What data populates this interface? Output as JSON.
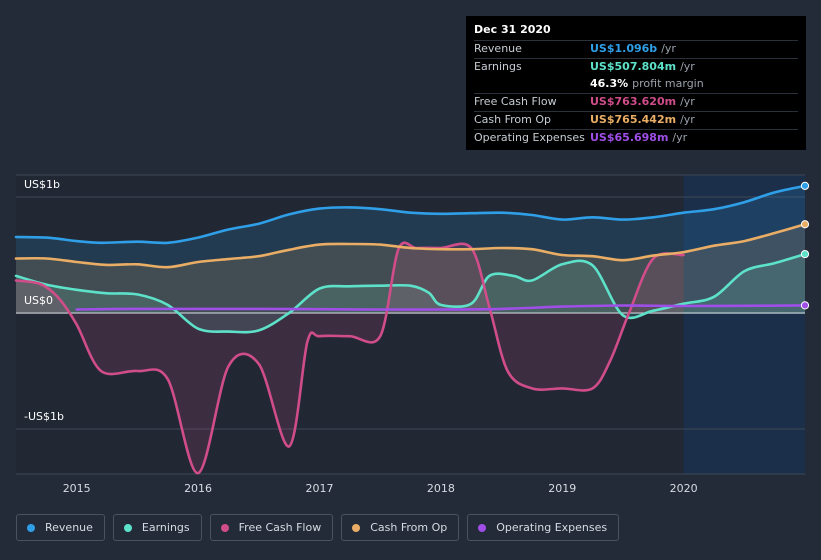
{
  "chart_data": {
    "type": "line",
    "x_range": [
      2014.5,
      2021.0
    ],
    "y_range": [
      -1.38,
      1.18
    ],
    "x_ticks": [
      2015,
      2016,
      2017,
      2018,
      2019,
      2020
    ],
    "x_tick_labels": [
      "2015",
      "2016",
      "2017",
      "2018",
      "2019",
      "2020"
    ],
    "y_labels": [
      {
        "value": 1.0,
        "label": "US$1b"
      },
      {
        "value": 0.0,
        "label": "US$0"
      },
      {
        "value": -1.0,
        "label": "-US$1b"
      }
    ],
    "gridlines": [
      1.2,
      1.0,
      0.0,
      -1.0
    ],
    "forecast_start": 2020.0,
    "series": [
      {
        "name": "Revenue",
        "color": "#2f9fe8",
        "fill": true,
        "end_marker": true,
        "x": [
          2014.5,
          2014.75,
          2015.0,
          2015.2,
          2015.5,
          2015.75,
          2016.0,
          2016.25,
          2016.5,
          2016.75,
          2017.0,
          2017.25,
          2017.5,
          2017.75,
          2018.0,
          2018.25,
          2018.5,
          2018.75,
          2019.0,
          2019.25,
          2019.5,
          2019.75,
          2020.0,
          2020.25,
          2020.5,
          2020.75,
          2021.0
        ],
        "values": [
          0.655,
          0.65,
          0.62,
          0.605,
          0.615,
          0.605,
          0.65,
          0.72,
          0.77,
          0.85,
          0.9,
          0.91,
          0.895,
          0.865,
          0.855,
          0.86,
          0.865,
          0.845,
          0.805,
          0.825,
          0.805,
          0.825,
          0.865,
          0.895,
          0.955,
          1.04,
          1.096
        ]
      },
      {
        "name": "Earnings",
        "color": "#5de2c9",
        "fill": true,
        "end_marker": true,
        "x": [
          2014.5,
          2014.75,
          2015.0,
          2015.25,
          2015.5,
          2015.75,
          2016.0,
          2016.25,
          2016.5,
          2016.75,
          2017.0,
          2017.25,
          2017.5,
          2017.75,
          2017.9,
          2018.0,
          2018.25,
          2018.4,
          2018.6,
          2018.75,
          2019.0,
          2019.25,
          2019.5,
          2019.75,
          2020.0,
          2020.25,
          2020.5,
          2020.75,
          2021.0
        ],
        "values": [
          0.32,
          0.245,
          0.2,
          0.17,
          0.16,
          0.07,
          -0.135,
          -0.16,
          -0.15,
          0.0,
          0.21,
          0.23,
          0.235,
          0.235,
          0.175,
          0.07,
          0.08,
          0.32,
          0.32,
          0.28,
          0.42,
          0.41,
          -0.02,
          0.02,
          0.08,
          0.14,
          0.36,
          0.43,
          0.508
        ]
      },
      {
        "name": "Free Cash Flow",
        "color": "#d04d8a",
        "fill": true,
        "end_marker": false,
        "x": [
          2014.5,
          2014.7,
          2014.85,
          2015.0,
          2015.2,
          2015.5,
          2015.75,
          2016.0,
          2016.25,
          2016.5,
          2016.75,
          2016.9,
          2017.0,
          2017.25,
          2017.5,
          2017.65,
          2017.8,
          2018.0,
          2018.25,
          2018.4,
          2018.55,
          2018.75,
          2019.0,
          2019.25,
          2019.4,
          2019.55,
          2019.75,
          2020.0
        ],
        "values": [
          0.28,
          0.25,
          0.13,
          -0.1,
          -0.5,
          -0.5,
          -0.57,
          -1.38,
          -0.46,
          -0.44,
          -1.15,
          -0.25,
          -0.2,
          -0.2,
          -0.2,
          0.55,
          0.56,
          0.56,
          0.56,
          0.05,
          -0.5,
          -0.65,
          -0.65,
          -0.65,
          -0.4,
          0.0,
          0.47,
          0.5
        ]
      },
      {
        "name": "Cash From Op",
        "color": "#e9ad65",
        "fill": true,
        "end_marker": true,
        "x": [
          2014.5,
          2014.75,
          2015.0,
          2015.25,
          2015.5,
          2015.75,
          2016.0,
          2016.25,
          2016.5,
          2016.75,
          2017.0,
          2017.25,
          2017.5,
          2017.75,
          2018.0,
          2018.25,
          2018.5,
          2018.75,
          2019.0,
          2019.25,
          2019.5,
          2019.75,
          2020.0,
          2020.25,
          2020.5,
          2020.75,
          2021.0
        ],
        "values": [
          0.47,
          0.47,
          0.44,
          0.415,
          0.42,
          0.395,
          0.44,
          0.465,
          0.49,
          0.545,
          0.59,
          0.595,
          0.59,
          0.56,
          0.55,
          0.55,
          0.56,
          0.55,
          0.5,
          0.49,
          0.455,
          0.495,
          0.525,
          0.58,
          0.62,
          0.69,
          0.765
        ]
      },
      {
        "name": "Operating Expenses",
        "color": "#9f4ee8",
        "fill": false,
        "end_marker": true,
        "x": [
          2015.0,
          2015.5,
          2016.0,
          2016.5,
          2017.0,
          2017.5,
          2018.0,
          2018.5,
          2019.0,
          2019.5,
          2020.0,
          2020.5,
          2021.0
        ],
        "values": [
          0.03,
          0.035,
          0.035,
          0.035,
          0.033,
          0.03,
          0.03,
          0.035,
          0.055,
          0.065,
          0.06,
          0.062,
          0.0657
        ]
      }
    ],
    "tooltip": {
      "date": "Dec 31 2020",
      "rows": [
        {
          "label": "Revenue",
          "value": "US$1.096b",
          "unit": "/yr",
          "color": "#2f9fe8"
        },
        {
          "label": "Earnings",
          "value": "US$507.804m",
          "unit": "/yr",
          "color": "#5de2c9"
        },
        {
          "label": "",
          "value": "46.3%",
          "unit": "profit margin",
          "color": "#ffffff"
        },
        {
          "label": "Free Cash Flow",
          "value": "US$763.620m",
          "unit": "/yr",
          "color": "#d04d8a"
        },
        {
          "label": "Cash From Op",
          "value": "US$765.442m",
          "unit": "/yr",
          "color": "#e9ad65"
        },
        {
          "label": "Operating Expenses",
          "value": "US$65.698m",
          "unit": "/yr",
          "color": "#9f4ee8"
        }
      ]
    },
    "legend": [
      {
        "label": "Revenue",
        "color": "#2f9fe8"
      },
      {
        "label": "Earnings",
        "color": "#5de2c9"
      },
      {
        "label": "Free Cash Flow",
        "color": "#d04d8a"
      },
      {
        "label": "Cash From Op",
        "color": "#e9ad65"
      },
      {
        "label": "Operating Expenses",
        "color": "#9f4ee8"
      }
    ]
  }
}
